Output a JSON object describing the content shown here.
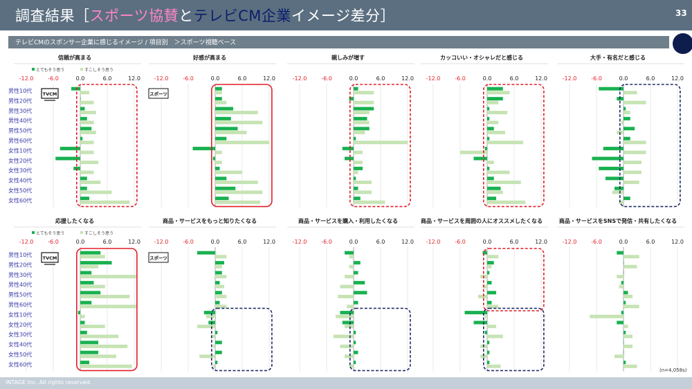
{
  "header": {
    "title_prefix": "調査結果［",
    "title_pink": "スポーツ協賛",
    "title_mid": "と",
    "title_navy": "テレビCM企業",
    "title_suffix": "イメージ差分］",
    "page_number": "33"
  },
  "subtitle": "テレビCMのスポンサー企業に感じるイメージ / 項目別　＞スポーツ視聴ベース",
  "footer": "INTAGE Inc. All rights reserved.",
  "note": "(n=4,058s)",
  "badges": {
    "tv": "TVCM",
    "sports": "スポーツ"
  },
  "colors": {
    "dark_green": "#19b150",
    "light_green": "#c6e3b4",
    "red": "#e01f26",
    "navy": "#1d2b66",
    "tick_neg": "#e01f26",
    "row_label": "#3a3aaa"
  },
  "chart_data": {
    "type": "bar",
    "orientation": "horizontal",
    "categories": [
      "男性10代",
      "男性20代",
      "男性30代",
      "男性40代",
      "男性50代",
      "男性60代",
      "女性10代",
      "女性20代",
      "女性30代",
      "女性40代",
      "女性50代",
      "女性60代"
    ],
    "xlim": [
      -12,
      12
    ],
    "xticks": [
      "-12.0",
      "-6.0",
      "0.0",
      "6.0",
      "12.0"
    ],
    "legend": [
      "とてもそう思う",
      "すこしそう思う"
    ],
    "legend_placement": "top-left",
    "panels": [
      {
        "title": "信頼が高まる",
        "series": [
          {
            "name": "とてもそう思う",
            "values": [
              -2.0,
              0.0,
              1.0,
              1.5,
              2.5,
              0.5,
              -4.5,
              -5.5,
              -1.5,
              1.5,
              1.5,
              2.0
            ]
          },
          {
            "name": "すこしそう思う",
            "values": [
              2.0,
              3.0,
              3.5,
              3.0,
              3.5,
              3.0,
              3.0,
              4.0,
              3.0,
              4.5,
              7.0,
              11.0
            ]
          }
        ]
      },
      {
        "title": "好感が高まる",
        "series": [
          {
            "name": "とてもそう思う",
            "values": [
              1.5,
              1.5,
              4.0,
              3.5,
              5.0,
              2.5,
              -5.0,
              -0.5,
              1.0,
              2.5,
              4.5,
              3.0
            ]
          },
          {
            "name": "すこしそう思う",
            "values": [
              1.5,
              2.5,
              9.5,
              10.5,
              7.0,
              12.0,
              1.5,
              1.5,
              6.0,
              9.5,
              10.5,
              10.0
            ]
          }
        ]
      },
      {
        "title": "親しみが増す",
        "series": [
          {
            "name": "とてもそう思う",
            "values": [
              1.0,
              -1.0,
              4.5,
              3.0,
              3.5,
              0.5,
              -2.5,
              -2.0,
              2.0,
              0.5,
              1.0,
              1.5
            ]
          },
          {
            "name": "すこしそう思う",
            "values": [
              4.5,
              4.5,
              3.5,
              3.5,
              2.5,
              12.0,
              2.0,
              2.0,
              1.0,
              4.0,
              4.0,
              7.0
            ]
          }
        ]
      },
      {
        "title": "カッコいい・オシャレだと感じる",
        "series": [
          {
            "name": "とてもそう思う",
            "values": [
              3.5,
              3.5,
              0.5,
              0.5,
              1.5,
              0.5,
              -0.5,
              -3.0,
              0.5,
              1.5,
              3.0,
              2.0
            ]
          },
          {
            "name": "すこしそう思う",
            "values": [
              5.0,
              2.5,
              4.5,
              2.5,
              4.0,
              8.0,
              -6.0,
              1.5,
              5.0,
              7.5,
              3.5,
              8.5
            ]
          }
        ]
      },
      {
        "title": "大手・有名だと感じる",
        "series": [
          {
            "name": "とてもそう思う",
            "values": [
              -5.5,
              -1.5,
              0.5,
              1.5,
              2.5,
              1.5,
              -4.5,
              -7.0,
              -5.5,
              -4.0,
              -2.0,
              1.5
            ]
          },
          {
            "name": "すこしそう思う",
            "values": [
              3.0,
              5.0,
              1.5,
              -0.5,
              -1.5,
              5.0,
              5.0,
              4.0,
              4.0,
              3.5,
              -2.5,
              -1.0
            ]
          }
        ]
      },
      {
        "title": "応援したくなる",
        "series": [
          {
            "name": "とてもそう思う",
            "values": [
              4.5,
              7.0,
              2.5,
              3.0,
              4.5,
              2.5,
              -0.5,
              1.0,
              1.5,
              4.0,
              4.0,
              2.0
            ]
          },
          {
            "name": "すこしそう思う",
            "values": [
              5.5,
              4.0,
              12.5,
              5.5,
              11.0,
              12.5,
              1.0,
              5.5,
              8.5,
              10.5,
              8.0,
              11.5
            ]
          }
        ]
      },
      {
        "title": "商品・サービスをもっと知りたくなる",
        "series": [
          {
            "name": "とてもそう思う",
            "values": [
              -4.0,
              2.0,
              1.5,
              1.0,
              1.5,
              1.0,
              -2.5,
              -1.5,
              0.5,
              1.5,
              1.5,
              0.5
            ]
          },
          {
            "name": "すこしそう思う",
            "values": [
              2.5,
              1.5,
              2.5,
              2.0,
              2.5,
              2.5,
              -2.0,
              -4.0,
              -1.0,
              -0.5,
              -3.5,
              -0.5
            ]
          }
        ]
      },
      {
        "title": "商品・サービスを購入・利用したくなる",
        "series": [
          {
            "name": "とてもそう思う",
            "values": [
              -2.0,
              1.5,
              1.0,
              2.5,
              3.0,
              1.0,
              -3.0,
              -2.5,
              0.5,
              0.5,
              1.0,
              0.5
            ]
          },
          {
            "name": "すこしそう思う",
            "values": [
              -1.0,
              -1.0,
              -2.0,
              -3.0,
              -3.5,
              -1.5,
              -4.0,
              -2.0,
              -4.5,
              -3.0,
              -2.0,
              -1.0
            ]
          }
        ]
      },
      {
        "title": "商品・サービスを周囲の人にオススメしたくなる",
        "series": [
          {
            "name": "とてもそう思う",
            "values": [
              -1.0,
              1.5,
              0.5,
              1.0,
              2.0,
              1.0,
              -5.0,
              -3.0,
              -0.5,
              0.5,
              0.5,
              0.5
            ]
          },
          {
            "name": "すこしそう思う",
            "values": [
              2.5,
              1.0,
              -1.5,
              -1.0,
              -2.0,
              2.5,
              -0.5,
              2.0,
              3.5,
              -1.5,
              -1.5,
              3.0
            ]
          }
        ]
      },
      {
        "title": "商品・サービスをSNSで発信・共有したくなる",
        "series": [
          {
            "name": "とてもそう思う",
            "values": [
              -1.5,
              0.0,
              0.0,
              -0.5,
              1.0,
              0.5,
              -0.5,
              -1.5,
              0.5,
              0.0,
              0.0,
              0.5
            ]
          },
          {
            "name": "すこしそう思う",
            "values": [
              3.5,
              3.0,
              -1.5,
              -1.0,
              2.0,
              3.5,
              -7.5,
              1.0,
              2.0,
              2.0,
              -2.0,
              3.0
            ]
          }
        ]
      }
    ]
  }
}
